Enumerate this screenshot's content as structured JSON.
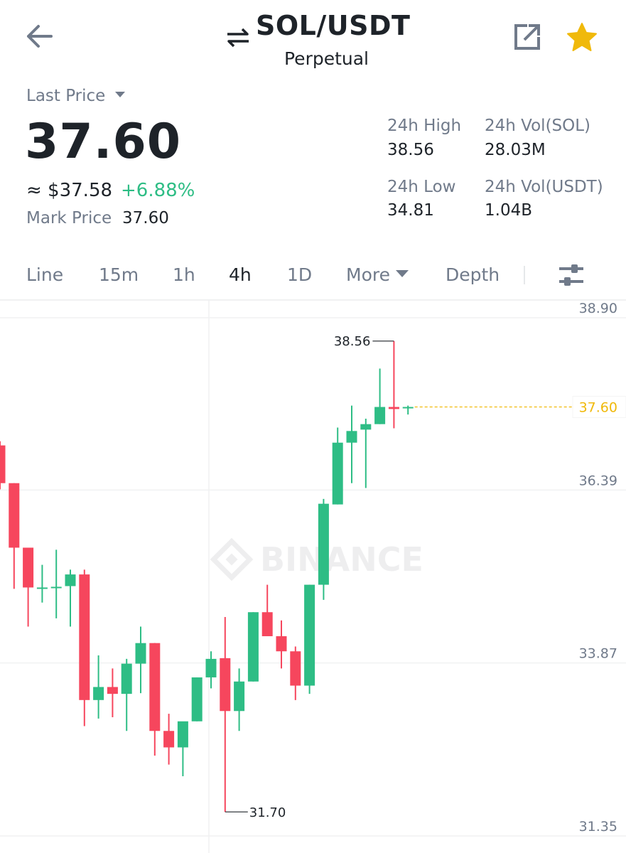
{
  "header": {
    "pair": "SOL/USDT",
    "contract_type": "Perpetual",
    "icons": [
      "back-arrow-icon",
      "swap-icon",
      "share-icon",
      "star-icon"
    ]
  },
  "price": {
    "last_price_label": "Last Price",
    "last_price": "37.60",
    "approx_usd": "≈ $37.58",
    "change_pct": "+6.88%",
    "mark_price_label": "Mark Price",
    "mark_price": "37.60"
  },
  "stats": {
    "high_label": "24h High",
    "high": "38.56",
    "vol_sol_label": "24h Vol(SOL)",
    "vol_sol": "28.03M",
    "low_label": "24h Low",
    "low": "34.81",
    "vol_usdt_label": "24h Vol(USDT)",
    "vol_usdt": "1.04B"
  },
  "tabs": {
    "line": "Line",
    "m15": "15m",
    "h1": "1h",
    "h4": "4h",
    "d1": "1D",
    "more": "More",
    "depth": "Depth",
    "active": "4h"
  },
  "colors": {
    "up": "#2ebd85",
    "down": "#f6465d",
    "accent": "#f0b90b",
    "text": "#1e2329",
    "muted": "#707a8a"
  },
  "chart_data": {
    "type": "candlestick",
    "title": "",
    "watermark": "BINANCE",
    "y_ticks": [
      "38.90",
      "36.39",
      "33.87",
      "31.35"
    ],
    "ylim": [
      31.35,
      38.9
    ],
    "current_price_label": "37.60",
    "high_marker": "38.56",
    "low_marker": "31.70",
    "candles": [
      {
        "o": 37.04,
        "h": 37.1,
        "l": 36.4,
        "c": 36.49
      },
      {
        "o": 36.49,
        "h": 36.49,
        "l": 34.95,
        "c": 35.55
      },
      {
        "o": 35.55,
        "h": 35.55,
        "l": 34.4,
        "c": 34.97
      },
      {
        "o": 34.96,
        "h": 35.3,
        "l": 34.75,
        "c": 34.97
      },
      {
        "o": 34.98,
        "h": 35.52,
        "l": 34.52,
        "c": 34.98
      },
      {
        "o": 34.99,
        "h": 35.23,
        "l": 34.4,
        "c": 35.16
      },
      {
        "o": 35.16,
        "h": 35.23,
        "l": 32.95,
        "c": 33.33
      },
      {
        "o": 33.33,
        "h": 33.98,
        "l": 33.06,
        "c": 33.52
      },
      {
        "o": 33.52,
        "h": 33.79,
        "l": 33.08,
        "c": 33.42
      },
      {
        "o": 33.42,
        "h": 33.93,
        "l": 32.88,
        "c": 33.86
      },
      {
        "o": 33.86,
        "h": 34.4,
        "l": 33.43,
        "c": 34.16
      },
      {
        "o": 34.16,
        "h": 34.16,
        "l": 32.52,
        "c": 32.88
      },
      {
        "o": 32.88,
        "h": 33.13,
        "l": 32.39,
        "c": 32.64
      },
      {
        "o": 32.64,
        "h": 32.99,
        "l": 32.22,
        "c": 33.02
      },
      {
        "o": 33.02,
        "h": 33.66,
        "l": 33.02,
        "c": 33.66
      },
      {
        "o": 33.66,
        "h": 34.04,
        "l": 33.5,
        "c": 33.93
      },
      {
        "o": 33.94,
        "h": 34.54,
        "l": 31.7,
        "c": 33.17
      },
      {
        "o": 33.17,
        "h": 33.79,
        "l": 32.88,
        "c": 33.6
      },
      {
        "o": 33.6,
        "h": 34.61,
        "l": 33.6,
        "c": 34.61
      },
      {
        "o": 34.61,
        "h": 35.01,
        "l": 34.26,
        "c": 34.26
      },
      {
        "o": 34.26,
        "h": 34.49,
        "l": 33.79,
        "c": 34.04
      },
      {
        "o": 34.04,
        "h": 34.11,
        "l": 33.33,
        "c": 33.54
      },
      {
        "o": 33.54,
        "h": 35.01,
        "l": 33.42,
        "c": 35.01
      },
      {
        "o": 35.01,
        "h": 36.26,
        "l": 34.79,
        "c": 36.19
      },
      {
        "o": 36.18,
        "h": 37.3,
        "l": 36.18,
        "c": 37.08
      },
      {
        "o": 37.08,
        "h": 37.62,
        "l": 36.49,
        "c": 37.25
      },
      {
        "o": 37.27,
        "h": 37.43,
        "l": 36.42,
        "c": 37.35
      },
      {
        "o": 37.35,
        "h": 38.16,
        "l": 37.35,
        "c": 37.6
      },
      {
        "o": 37.6,
        "h": 38.56,
        "l": 37.29,
        "c": 37.57
      },
      {
        "o": 37.58,
        "h": 37.62,
        "l": 37.49,
        "c": 37.6
      }
    ]
  }
}
